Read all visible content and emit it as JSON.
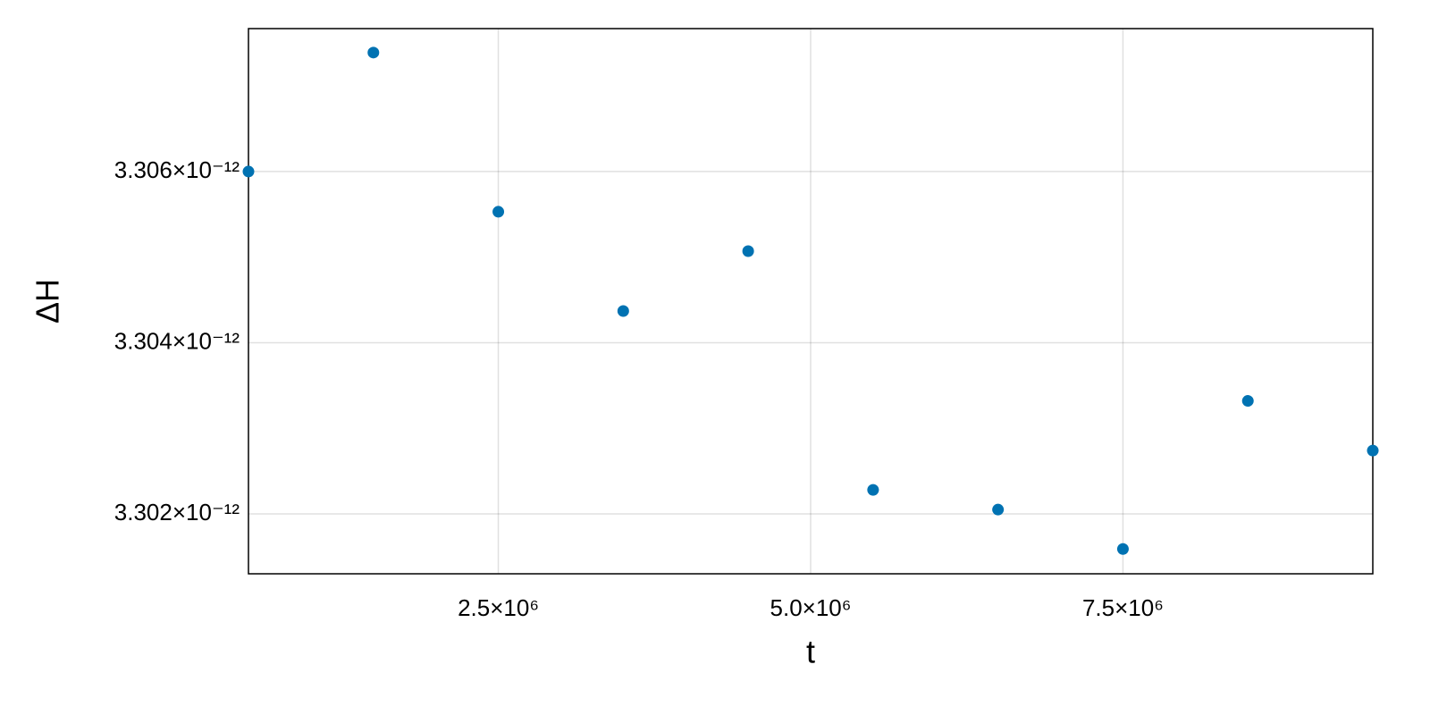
{
  "chart_data": {
    "type": "scatter",
    "x_label": "t",
    "y_label": "ΔH",
    "x": [
      500000,
      1500000,
      2500000,
      3500000,
      4500000,
      5500000,
      6500000,
      7500000,
      8500000,
      9500000
    ],
    "series": [
      {
        "color": "#0072b2",
        "values": [
          3.306e-12,
          3.30739e-12,
          3.30553e-12,
          3.30437e-12,
          3.30507e-12,
          3.30228e-12,
          3.30205e-12,
          3.30159e-12,
          3.30332e-12,
          3.30274e-12
        ]
      }
    ],
    "xlim": [
      500000,
      9500000
    ],
    "xticks": [
      {
        "value": 2500000,
        "label": "2.5×10⁶"
      },
      {
        "value": 5000000,
        "label": "5.0×10⁶"
      },
      {
        "value": 7500000,
        "label": "7.5×10⁶"
      }
    ],
    "ylim": [
      3.3013e-12,
      3.30767e-12
    ],
    "yticks": [
      {
        "value": 3.302e-12,
        "label": "3.302×10⁻¹²"
      },
      {
        "value": 3.304e-12,
        "label": "3.304×10⁻¹²"
      },
      {
        "value": 3.306e-12,
        "label": "3.306×10⁻¹²"
      }
    ],
    "grid": true
  }
}
